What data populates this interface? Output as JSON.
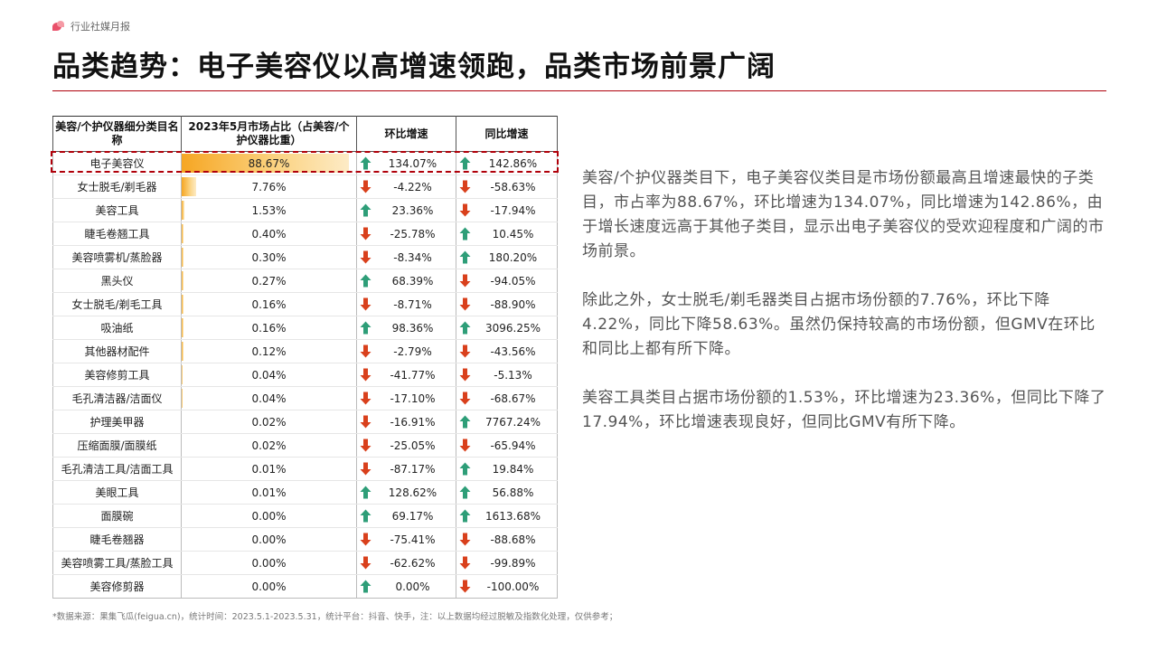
{
  "header": {
    "brand_label": "行业社媒月报",
    "title": "品类趋势：电子美容仪以高增速领跑，品类市场前景广阔"
  },
  "table": {
    "headers": {
      "category": "美容/个护仪器细分类目名称",
      "share": "2023年5月市场占比（占美容/个护仪器比重）",
      "mom": "环比增速",
      "yoy": "同比增速"
    },
    "rows": [
      {
        "name": "电子美容仪",
        "share": "88.67%",
        "share_value": 88.67,
        "mom": "134.07%",
        "mom_dir": "up",
        "yoy": "142.86%",
        "yoy_dir": "up"
      },
      {
        "name": "女士脱毛/剃毛器",
        "share": "7.76%",
        "share_value": 7.76,
        "mom": "-4.22%",
        "mom_dir": "down",
        "yoy": "-58.63%",
        "yoy_dir": "down"
      },
      {
        "name": "美容工具",
        "share": "1.53%",
        "share_value": 1.53,
        "mom": "23.36%",
        "mom_dir": "up",
        "yoy": "-17.94%",
        "yoy_dir": "down"
      },
      {
        "name": "睫毛卷翘工具",
        "share": "0.40%",
        "share_value": 0.4,
        "mom": "-25.78%",
        "mom_dir": "down",
        "yoy": "10.45%",
        "yoy_dir": "up"
      },
      {
        "name": "美容喷雾机/蒸脸器",
        "share": "0.30%",
        "share_value": 0.3,
        "mom": "-8.34%",
        "mom_dir": "down",
        "yoy": "180.20%",
        "yoy_dir": "up"
      },
      {
        "name": "黑头仪",
        "share": "0.27%",
        "share_value": 0.27,
        "mom": "68.39%",
        "mom_dir": "up",
        "yoy": "-94.05%",
        "yoy_dir": "down"
      },
      {
        "name": "女士脱毛/剃毛工具",
        "share": "0.16%",
        "share_value": 0.16,
        "mom": "-8.71%",
        "mom_dir": "down",
        "yoy": "-88.90%",
        "yoy_dir": "down"
      },
      {
        "name": "吸油纸",
        "share": "0.16%",
        "share_value": 0.16,
        "mom": "98.36%",
        "mom_dir": "up",
        "yoy": "3096.25%",
        "yoy_dir": "up"
      },
      {
        "name": "其他器材配件",
        "share": "0.12%",
        "share_value": 0.12,
        "mom": "-2.79%",
        "mom_dir": "down",
        "yoy": "-43.56%",
        "yoy_dir": "down"
      },
      {
        "name": "美容修剪工具",
        "share": "0.04%",
        "share_value": 0.04,
        "mom": "-41.77%",
        "mom_dir": "down",
        "yoy": "-5.13%",
        "yoy_dir": "down"
      },
      {
        "name": "毛孔清洁器/洁面仪",
        "share": "0.04%",
        "share_value": 0.04,
        "mom": "-17.10%",
        "mom_dir": "down",
        "yoy": "-68.67%",
        "yoy_dir": "down"
      },
      {
        "name": "护理美甲器",
        "share": "0.02%",
        "share_value": 0.02,
        "mom": "-16.91%",
        "mom_dir": "down",
        "yoy": "7767.24%",
        "yoy_dir": "up"
      },
      {
        "name": "压缩面膜/面膜纸",
        "share": "0.02%",
        "share_value": 0.02,
        "mom": "-25.05%",
        "mom_dir": "down",
        "yoy": "-65.94%",
        "yoy_dir": "down"
      },
      {
        "name": "毛孔清洁工具/洁面工具",
        "share": "0.01%",
        "share_value": 0.01,
        "mom": "-87.17%",
        "mom_dir": "down",
        "yoy": "19.84%",
        "yoy_dir": "up"
      },
      {
        "name": "美眼工具",
        "share": "0.01%",
        "share_value": 0.01,
        "mom": "128.62%",
        "mom_dir": "up",
        "yoy": "56.88%",
        "yoy_dir": "up"
      },
      {
        "name": "面膜碗",
        "share": "0.00%",
        "share_value": 0.0,
        "mom": "69.17%",
        "mom_dir": "up",
        "yoy": "1613.68%",
        "yoy_dir": "up"
      },
      {
        "name": "睫毛卷翘器",
        "share": "0.00%",
        "share_value": 0.0,
        "mom": "-75.41%",
        "mom_dir": "down",
        "yoy": "-88.68%",
        "yoy_dir": "down"
      },
      {
        "name": "美容喷雾工具/蒸脸工具",
        "share": "0.00%",
        "share_value": 0.0,
        "mom": "-62.62%",
        "mom_dir": "down",
        "yoy": "-99.89%",
        "yoy_dir": "down"
      },
      {
        "name": "美容修剪器",
        "share": "0.00%",
        "share_value": 0.0,
        "mom": "0.00%",
        "mom_dir": "up",
        "yoy": "-100.00%",
        "yoy_dir": "down"
      }
    ]
  },
  "commentary": [
    "美容/个护仪器类目下，电子美容仪类目是市场份额最高且增速最快的子类目，市占率为88.67%，环比增速为134.07%，同比增速为142.86%，由于增长速度远高于其他子类目，显示出电子美容仪的受欢迎程度和广阔的市场前景。",
    "除此之外，女士脱毛/剃毛器类目占据市场份额的7.76%，环比下降4.22%，同比下降58.63%。虽然仍保持较高的市场份额，但GMV在环比和同比上都有所下降。",
    "美容工具类目占据市场份额的1.53%，环比增速为23.36%，但同比下降了17.94%，环比增速表现良好，但同比GMV有所下降。"
  ],
  "footnote": "*数据来源：果集飞瓜(feigua.cn)，统计时间：2023.5.1-2023.5.31，统计平台：抖音、快手，注：以上数据均经过脱敏及指数化处理，仅供参考；",
  "colors": {
    "accent": "#b0000a",
    "bar": "#f6a623",
    "up_arrow": "#2e9e78",
    "down_arrow": "#d9401c"
  },
  "icons": {
    "up": "arrow-up-icon",
    "down": "arrow-down-icon"
  }
}
